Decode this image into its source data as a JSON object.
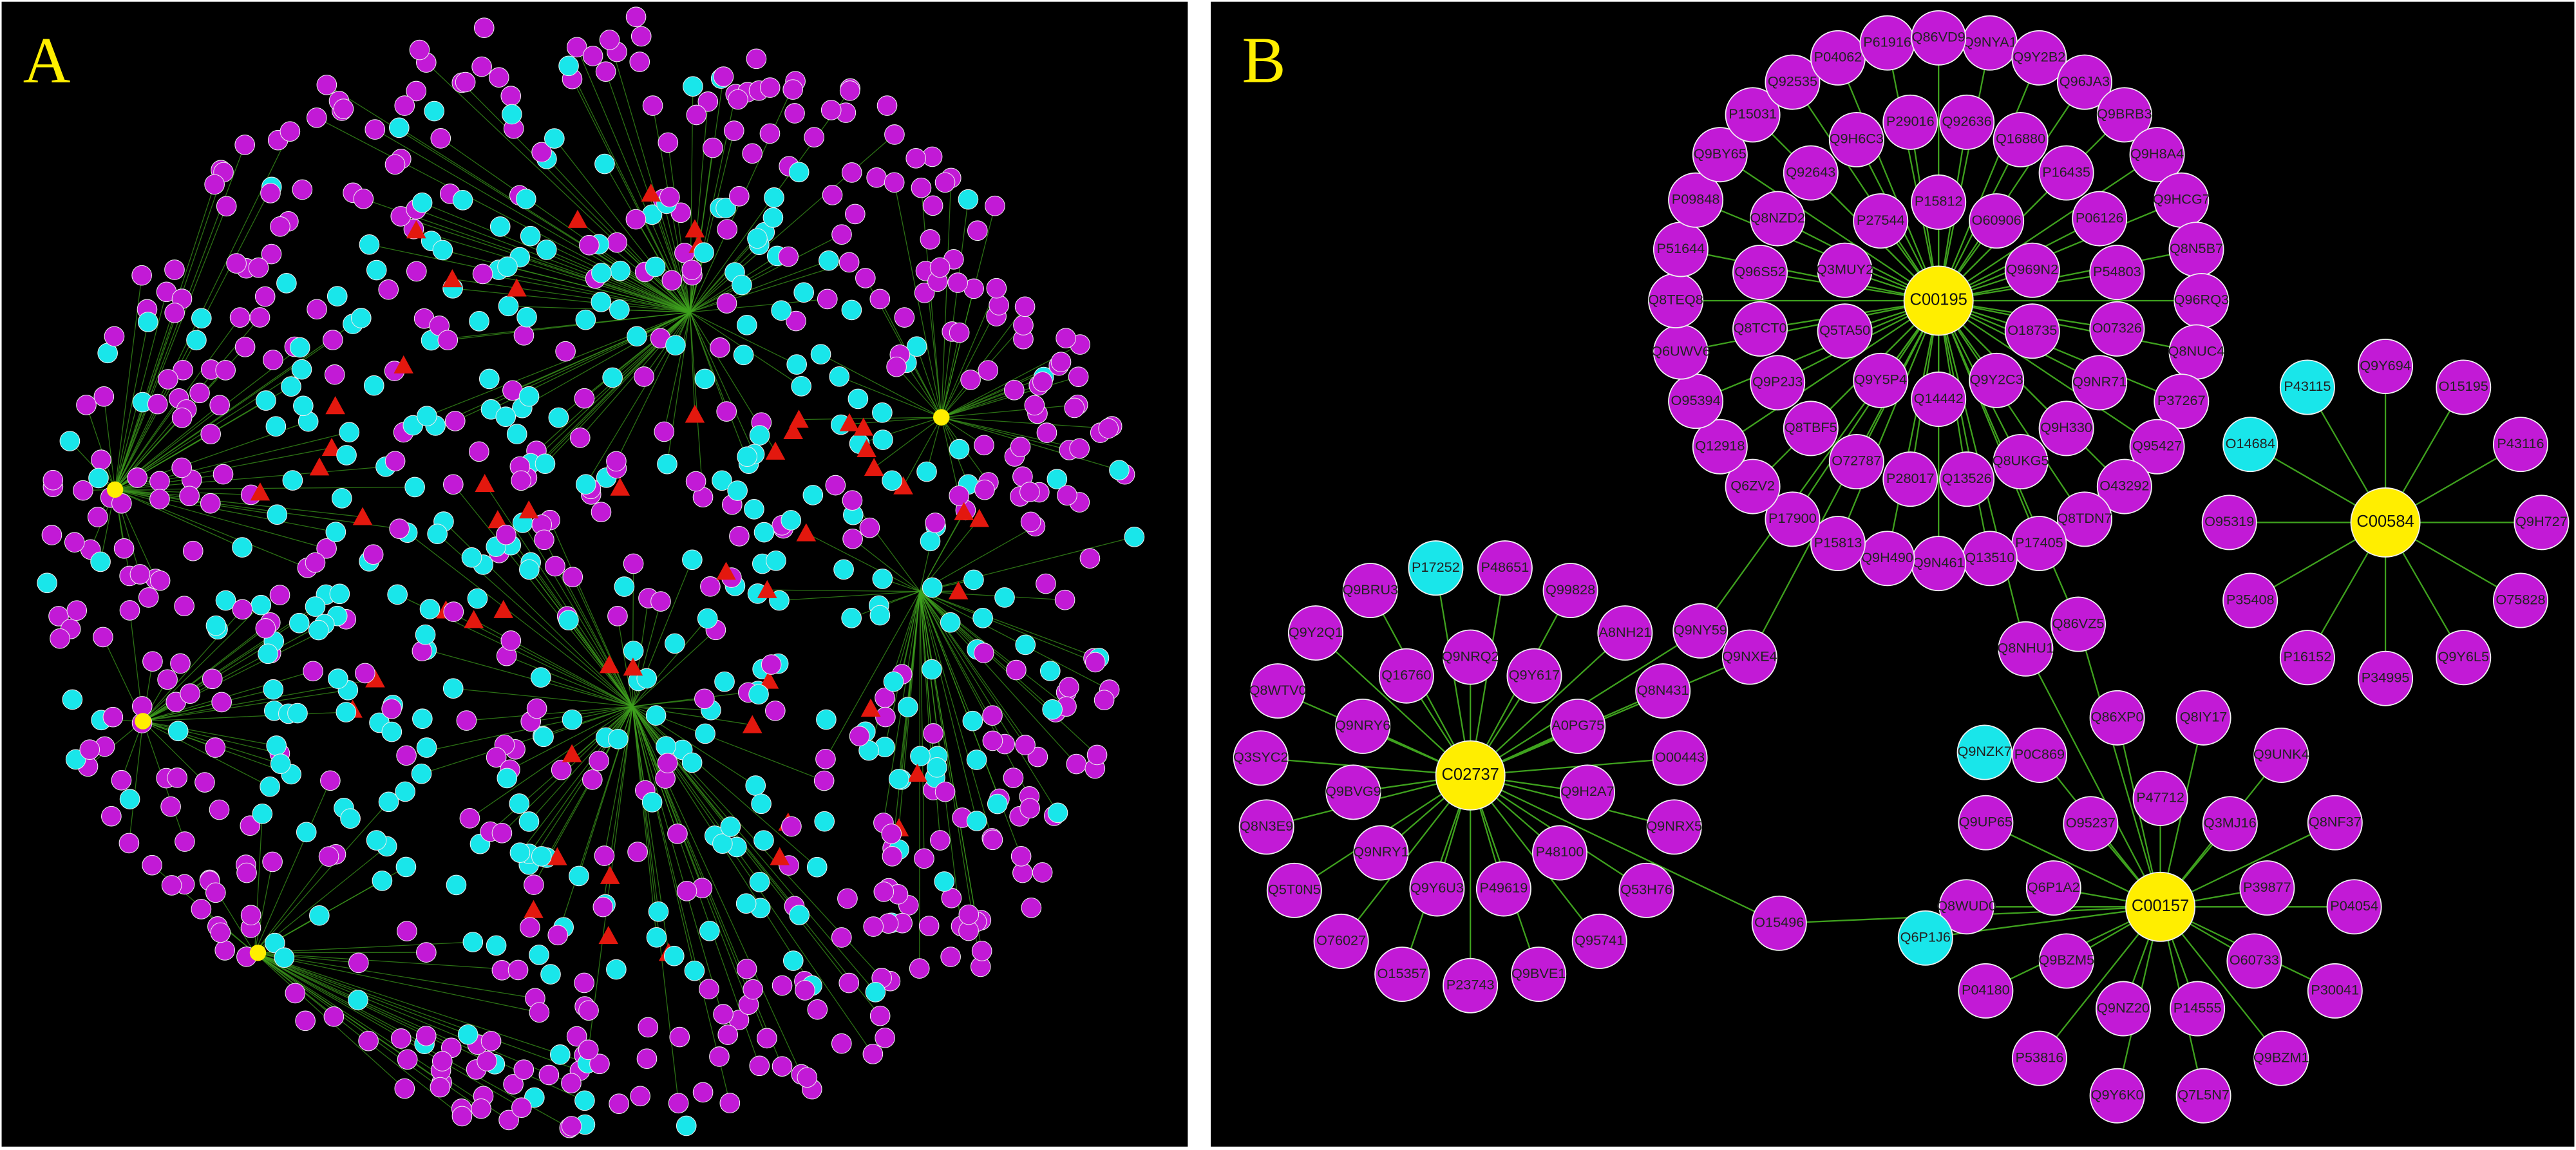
{
  "panels": [
    {
      "label": "A"
    },
    {
      "label": "B",
      "hubs": [
        {
          "label": "C00195",
          "neighbors": [
            "P15812",
            "O60906",
            "Q969N2",
            "O18735",
            "Q9Y2C3",
            "Q14442",
            "Q9Y5P4",
            "Q5TA50",
            "Q3MUY2",
            "P27544",
            "Q92636",
            "Q16880",
            "P16435",
            "P06126",
            "P54803",
            "O07326",
            "Q9NR71",
            "Q9H330",
            "Q8UKG5",
            "Q13526",
            "P28017",
            "O72787",
            "Q8TBF5",
            "Q9P2J3",
            "Q8TCT0",
            "Q96S52",
            "Q8NZD2",
            "Q92643",
            "Q9H6C3",
            "P29016",
            "Q9NYA1",
            "Q9Y2B2",
            "Q96JA3",
            "Q9BRB3",
            "Q9H8A4",
            "Q9HCG7",
            "Q8N5B7",
            "Q96RQ3",
            "Q8NUC4",
            "P37267",
            "Q95427",
            "O43292",
            "Q8TDN7",
            "P17405",
            "Q13510",
            "Q9N461",
            "Q9H490",
            "P15813",
            "P17900",
            "Q6ZV2",
            "Q12918",
            "O95394",
            "Q6UWV6",
            "Q8TEQ8",
            "P51644",
            "P09848",
            "Q9BY65",
            "P15031",
            "Q92535",
            "P04062",
            "P61916",
            "Q86VD9"
          ],
          "cyan_neighbors": []
        },
        {
          "label": "C00584",
          "neighbors": [
            "Q9Y694",
            "O15195",
            "P43116",
            "Q9H727",
            "O75828",
            "Q9Y6L5",
            "P34995",
            "P16152",
            "P35408",
            "O95319"
          ],
          "cyan_neighbors": [
            "O14684",
            "P43115"
          ]
        },
        {
          "label": "C02737",
          "neighbors": [
            "Q9NRQ2",
            "Q9Y617",
            "A0PG75",
            "Q9H2A7",
            "P48100",
            "P49619",
            "Q9Y6U3",
            "Q9NRY1",
            "Q9BVG9",
            "Q9NRY6",
            "Q16760",
            "P48651",
            "Q99828",
            "A8NH21",
            "Q8N431",
            "O00443",
            "Q9NRX5",
            "Q53H76",
            "Q95741",
            "Q9BVE1",
            "P23743",
            "O15357",
            "O76027",
            "Q5T0N5",
            "Q8N3E9",
            "Q3SYC2",
            "Q8WTV0",
            "Q9Y2Q1",
            "Q9BRU3"
          ],
          "cyan_neighbors": [
            "P17252"
          ]
        },
        {
          "label": "C00157",
          "neighbors": [
            "P47712",
            "Q3MJ16",
            "P39877",
            "O60733",
            "P14555",
            "Q9NZ20",
            "Q9BZM5",
            "Q6P1A2",
            "O95237",
            "Q8IY17",
            "Q9UNK4",
            "Q8NF37",
            "P04054",
            "P30041",
            "Q9BZM1",
            "Q7L5N7",
            "Q9Y6K0",
            "P53816",
            "P04180",
            "Q8WUD0",
            "Q9UP65",
            "P0C869",
            "Q86XP0"
          ],
          "cyan_neighbors": []
        }
      ],
      "bridges": [
        "Q9NY59",
        "Q9NXE4",
        "Q86VZ5",
        "Q8NHU1",
        "O15496",
        "Q6P1J6",
        "Q9NZK7"
      ]
    }
  ]
}
